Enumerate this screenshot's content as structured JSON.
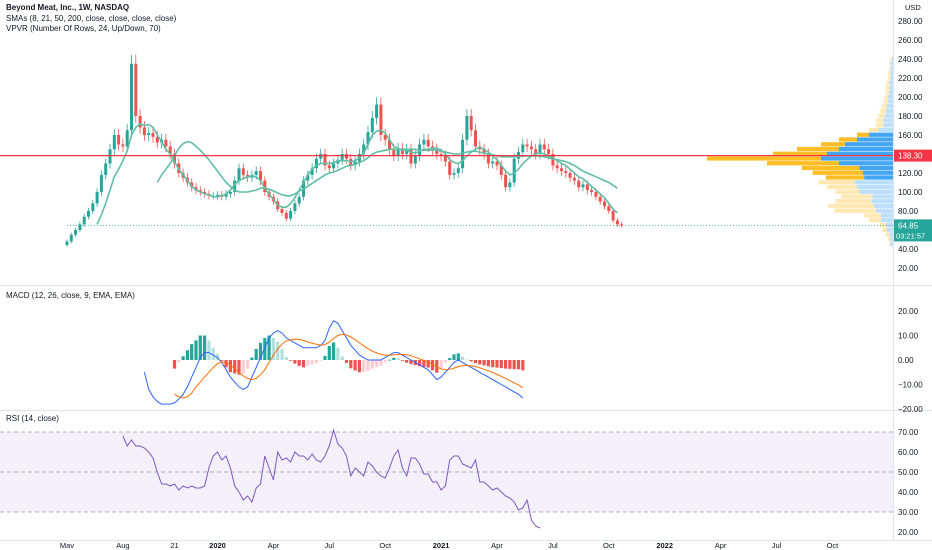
{
  "header": {
    "symbol": "Beyond Meat, Inc., 1W, NASDAQ",
    "smas": "SMAs (8, 21, 50, 200, close, close, close, close)",
    "vpvr": "VPVR (Number Of Rows, 24, Up/Down, 70)"
  },
  "currency": "USD",
  "price_badge": "138.30",
  "last_badge": {
    "price": "64.85",
    "countdown": "03:21:57"
  },
  "macd_title": "MACD (12, 26, close, 9, EMA, EMA)",
  "rsi_title": "RSI (14, close)",
  "colors": {
    "up": "#26a69a",
    "down": "#ef5350",
    "sma_fast": "#5fbfa6",
    "sma_slow": "#5fbfa6",
    "hline": "#f23645",
    "macd": "#2962ff",
    "signal": "#ff6d00",
    "rsi": "#7e57c2",
    "vp_up": "#2196f3",
    "vp_down": "#ffb300"
  },
  "chart_data": [
    {
      "type": "candlestick",
      "title": "Beyond Meat, Inc., 1W, NASDAQ",
      "ylim": [
        20,
        295
      ],
      "yticks": [
        20,
        40,
        60,
        80,
        100,
        120,
        140,
        160,
        180,
        200,
        220,
        240,
        260,
        280
      ],
      "xticks": [
        "Mav",
        "Aug",
        "21",
        "2020",
        "Apr",
        "Jul",
        "Oct",
        "2021",
        "Apr",
        "Jul",
        "Oct",
        "2022",
        "Apr",
        "Jul",
        "Oct"
      ],
      "xtick_weeks": [
        0,
        13,
        25,
        35,
        48,
        61,
        74,
        87,
        100,
        113,
        126,
        139,
        152,
        165,
        178
      ],
      "horizontal_line": 138.3,
      "last_price": 64.85,
      "closes": [
        48,
        55,
        60,
        66,
        74,
        80,
        88,
        100,
        118,
        130,
        145,
        160,
        150,
        148,
        165,
        235,
        180,
        168,
        160,
        162,
        158,
        152,
        155,
        148,
        140,
        130,
        120,
        115,
        110,
        105,
        102,
        100,
        98,
        96,
        96,
        97,
        95,
        98,
        100,
        112,
        125,
        118,
        115,
        118,
        122,
        112,
        100,
        95,
        90,
        82,
        78,
        72,
        80,
        88,
        95,
        112,
        118,
        125,
        135,
        140,
        128,
        125,
        130,
        134,
        140,
        135,
        128,
        132,
        140,
        150,
        163,
        178,
        192,
        160,
        155,
        145,
        138,
        146,
        140,
        145,
        130,
        138,
        150,
        155,
        148,
        145,
        140,
        138,
        132,
        118,
        120,
        125,
        155,
        180,
        165,
        148,
        145,
        140,
        130,
        132,
        128,
        118,
        105,
        110,
        135,
        142,
        150,
        148,
        145,
        140,
        150,
        145,
        140,
        128,
        125,
        122,
        120,
        115,
        112,
        105,
        108,
        102,
        100,
        95,
        90,
        85,
        80,
        70,
        66,
        64.85
      ],
      "sma_fast": [
        null,
        null,
        null,
        null,
        null,
        null,
        null,
        66,
        76,
        88,
        102,
        116,
        124,
        133,
        143,
        160,
        168,
        172,
        170,
        171,
        168,
        160,
        153,
        145,
        140,
        132,
        124,
        118,
        112,
        106,
        102,
        100,
        98,
        97,
        95,
        95,
        96,
        98,
        102,
        108,
        112,
        114,
        116,
        117,
        116,
        112,
        104,
        98,
        92,
        86,
        84,
        84,
        88,
        94,
        102,
        110,
        118,
        124,
        128,
        130,
        130,
        130,
        131,
        133,
        133,
        133,
        132,
        133,
        136,
        141,
        150,
        160,
        164,
        165,
        162,
        155,
        148,
        146,
        144,
        144,
        142,
        141,
        143,
        145,
        145,
        146,
        146,
        144,
        140,
        134,
        131,
        130,
        133,
        138,
        142,
        145,
        147,
        145,
        142,
        138,
        134,
        128,
        122,
        118,
        120,
        124,
        130,
        134,
        138,
        140,
        141,
        140,
        138,
        136,
        133,
        130,
        128,
        124,
        120,
        116,
        114,
        110,
        106,
        102,
        98,
        94,
        88,
        82,
        78
      ],
      "sma_slow": [
        null,
        null,
        null,
        null,
        null,
        null,
        null,
        null,
        null,
        null,
        null,
        null,
        null,
        null,
        null,
        null,
        null,
        null,
        null,
        null,
        null,
        110,
        118,
        124,
        130,
        138,
        146,
        151,
        153,
        152,
        148,
        144,
        139,
        134,
        128,
        122,
        116,
        110,
        106,
        102,
        100,
        100,
        100,
        101,
        102,
        104,
        104,
        103,
        101,
        99,
        97,
        96,
        96,
        98,
        101,
        103,
        106,
        109,
        112,
        115,
        118,
        120,
        121,
        123,
        125,
        127,
        128,
        129,
        131,
        133,
        136,
        140,
        142,
        143,
        144,
        145,
        145,
        145,
        145,
        145,
        145,
        145,
        144,
        144,
        144,
        144,
        144,
        143,
        142,
        141,
        140,
        140,
        141,
        142,
        143,
        143,
        142,
        141,
        140,
        139,
        138,
        137,
        137,
        137,
        137,
        137,
        138,
        138,
        138,
        138,
        138,
        137,
        136,
        135,
        134,
        133,
        132,
        130,
        128,
        125,
        122,
        120,
        118,
        116,
        114,
        112,
        110,
        107,
        104
      ]
    },
    {
      "type": "horizontal_bar",
      "title": "VPVR (Number Of Rows, 24, Up/Down, 70)",
      "price_rows": [
        45,
        50,
        55,
        60,
        65,
        70,
        75,
        80,
        85,
        90,
        95,
        100,
        105,
        110,
        115,
        120,
        125,
        130,
        135,
        140,
        145,
        150,
        155,
        160,
        165,
        170,
        175,
        180,
        185,
        190,
        195,
        200,
        205,
        210,
        215,
        220,
        225,
        230,
        235,
        240
      ],
      "up_volume": [
        2,
        2,
        3,
        5,
        6,
        10,
        10,
        14,
        16,
        18,
        17,
        28,
        30,
        32,
        24,
        25,
        28,
        45,
        60,
        55,
        45,
        40,
        30,
        20,
        12,
        8,
        8,
        7,
        6,
        5,
        4,
        4,
        3,
        3,
        3,
        2,
        2,
        2,
        2,
        1
      ],
      "down_volume": [
        1,
        2,
        3,
        4,
        5,
        10,
        14,
        35,
        38,
        30,
        26,
        20,
        25,
        30,
        32,
        42,
        48,
        60,
        95,
        45,
        35,
        20,
        15,
        10,
        8,
        6,
        6,
        5,
        5,
        4,
        4,
        3,
        3,
        3,
        2,
        2,
        2,
        1,
        1,
        1
      ]
    },
    {
      "type": "line",
      "title": "MACD (12, 26, close, 9, EMA, EMA)",
      "ylim": [
        -20,
        20
      ],
      "yticks": [
        -20,
        -10,
        0,
        10,
        20
      ],
      "start_week": 18,
      "macd": [
        -5,
        -12,
        -15,
        -17,
        -18,
        -18,
        -18,
        -17.5,
        -16,
        -14,
        -11,
        -7,
        -3,
        1,
        3,
        3,
        2,
        1,
        -1,
        -4,
        -7,
        -9,
        -11,
        -12,
        -11,
        -7,
        -3,
        1,
        5,
        9,
        11,
        12,
        11,
        9,
        8,
        7,
        6,
        5,
        5,
        5,
        5,
        6,
        8,
        13,
        16,
        15,
        12,
        9,
        6,
        4,
        2,
        1,
        0,
        0,
        0,
        0,
        1,
        2,
        3,
        3,
        2,
        1,
        0,
        -1,
        -2,
        -3,
        -4,
        -6,
        -8,
        -7,
        -5,
        -3,
        -1,
        0,
        -1,
        -2,
        -3,
        -4,
        -5,
        -6,
        -7,
        -8,
        -9,
        -10,
        -11,
        -12,
        -13,
        -14,
        -15.5
      ],
      "signal": [
        null,
        null,
        null,
        null,
        null,
        null,
        null,
        -14,
        -15,
        -15.5,
        -15,
        -13.5,
        -11,
        -9,
        -7,
        -5,
        -3,
        -1.5,
        -0.8,
        -1,
        -2,
        -3.5,
        -5,
        -6.5,
        -7.5,
        -8,
        -7.5,
        -6,
        -4,
        -1,
        2,
        4.5,
        6.5,
        7.8,
        8.3,
        8.5,
        8.4,
        8,
        7.4,
        6.9,
        6.4,
        6.1,
        6.3,
        7.3,
        8.8,
        10,
        10.5,
        10.2,
        9.4,
        8.3,
        7,
        5.8,
        4.6,
        3.6,
        2.9,
        2.3,
        1.9,
        1.9,
        2.1,
        2.3,
        2.3,
        2.1,
        1.7,
        1.1,
        0.5,
        -0.2,
        -0.9,
        -1.8,
        -2.8,
        -3.6,
        -4,
        -3.8,
        -3.3,
        -2.7,
        -2.3,
        -2.2,
        -2.4,
        -2.7,
        -3.2,
        -3.8,
        -4.4,
        -5.1,
        -5.9,
        -6.7,
        -7.5,
        -8.4,
        -9.3,
        -10.2,
        -11.3
      ],
      "histogram_color_note": "up/down coloured by sign and slope"
    },
    {
      "type": "line",
      "title": "RSI (14, close)",
      "ylim": [
        20,
        75
      ],
      "yticks": [
        20,
        30,
        40,
        50,
        60,
        70
      ],
      "bands": [
        30,
        50,
        70
      ],
      "start_week": 13,
      "rsi": [
        68,
        63,
        66,
        63,
        63,
        62,
        60,
        57,
        50,
        44,
        44,
        43,
        44,
        41,
        43,
        42,
        43,
        42,
        42,
        43,
        52,
        58,
        60,
        56,
        58,
        52,
        43,
        40,
        36,
        38,
        35,
        42,
        44,
        58,
        52,
        46,
        60,
        56,
        57,
        55,
        60,
        58,
        58,
        56,
        59,
        56,
        55,
        58,
        63,
        71,
        64,
        62,
        58,
        48,
        52,
        50,
        48,
        55,
        53,
        50,
        48,
        47,
        52,
        58,
        61,
        52,
        48,
        57,
        57,
        54,
        49,
        49,
        45,
        45,
        41,
        43,
        56,
        58,
        58,
        54,
        53,
        52,
        56,
        45,
        45,
        43,
        41,
        42,
        40,
        38,
        37,
        35,
        31,
        32,
        36,
        26,
        23,
        22
      ]
    }
  ]
}
